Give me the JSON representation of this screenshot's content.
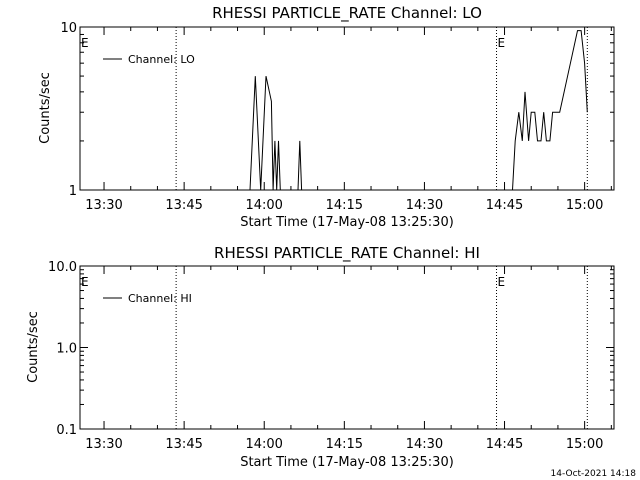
{
  "chart_data": [
    {
      "type": "line",
      "title": "RHESSI PARTICLE_RATE Channel: LO",
      "xlabel": "Start Time (17-May-08 13:25:30)",
      "ylabel": "Counts/sec",
      "yscale": "log",
      "ylim": [
        1,
        10
      ],
      "y_ticks": [
        "1",
        "10"
      ],
      "x_ticks": [
        "13:30",
        "13:45",
        "14:00",
        "14:15",
        "14:30",
        "14:45",
        "15:00"
      ],
      "xlim": [
        "13:25:30",
        "15:05:30"
      ],
      "legend": {
        "label": "Channel: LO",
        "placement": "top-left"
      },
      "event_marks": [
        {
          "label": "E",
          "time": "13:25:30",
          "line": false
        },
        {
          "label": "",
          "time": "13:43:30",
          "line": true
        },
        {
          "label": "E",
          "time": "14:43:30",
          "line": true
        },
        {
          "label": "",
          "time": "15:00:30",
          "line": true
        }
      ],
      "series": [
        {
          "name": "Channel: LO",
          "points": [
            [
              "13:57:20",
              1
            ],
            [
              "13:58:20",
              5
            ],
            [
              "13:59:20",
              1
            ],
            [
              "14:00:20",
              5
            ],
            [
              "14:01:20",
              3.5
            ],
            [
              "14:01:40",
              1
            ],
            [
              "14:02:00",
              2
            ],
            [
              "14:02:20",
              1
            ],
            [
              "14:02:40",
              2
            ],
            [
              "14:03:00",
              1
            ],
            [
              "14:06:20",
              1
            ],
            [
              "14:06:40",
              2
            ],
            [
              "14:07:00",
              1
            ],
            [
              "14:46:30",
              1
            ],
            [
              "14:47:00",
              2
            ],
            [
              "14:47:40",
              3
            ],
            [
              "14:48:20",
              2
            ],
            [
              "14:48:50",
              4
            ],
            [
              "14:49:30",
              2
            ],
            [
              "14:50:00",
              3
            ],
            [
              "14:50:40",
              3
            ],
            [
              "14:51:10",
              2
            ],
            [
              "14:51:50",
              2
            ],
            [
              "14:52:20",
              3
            ],
            [
              "14:52:50",
              2
            ],
            [
              "14:53:30",
              2
            ],
            [
              "14:54:00",
              3
            ],
            [
              "14:55:20",
              3
            ],
            [
              "14:57:20",
              6
            ],
            [
              "14:58:40",
              9.5
            ],
            [
              "14:59:20",
              9.5
            ],
            [
              "15:00:00",
              6
            ],
            [
              "15:00:30",
              3
            ]
          ]
        }
      ]
    },
    {
      "type": "line",
      "title": "RHESSI PARTICLE_RATE Channel: HI",
      "xlabel": "Start Time (17-May-08 13:25:30)",
      "ylabel": "Counts/sec",
      "yscale": "log",
      "ylim": [
        0.1,
        10
      ],
      "y_ticks": [
        "0.1",
        "1.0",
        "10.0"
      ],
      "x_ticks": [
        "13:30",
        "13:45",
        "14:00",
        "14:15",
        "14:30",
        "14:45",
        "15:00"
      ],
      "xlim": [
        "13:25:30",
        "15:05:30"
      ],
      "legend": {
        "label": "Channel: HI",
        "placement": "top-left"
      },
      "event_marks": [
        {
          "label": "E",
          "time": "13:25:30",
          "line": false
        },
        {
          "label": "",
          "time": "13:43:30",
          "line": true
        },
        {
          "label": "E",
          "time": "14:43:30",
          "line": true
        },
        {
          "label": "",
          "time": "15:00:30",
          "line": true
        }
      ],
      "series": [
        {
          "name": "Channel: HI",
          "points": []
        }
      ]
    }
  ],
  "footer": {
    "date_stamp": "14-Oct-2021 14:18"
  }
}
